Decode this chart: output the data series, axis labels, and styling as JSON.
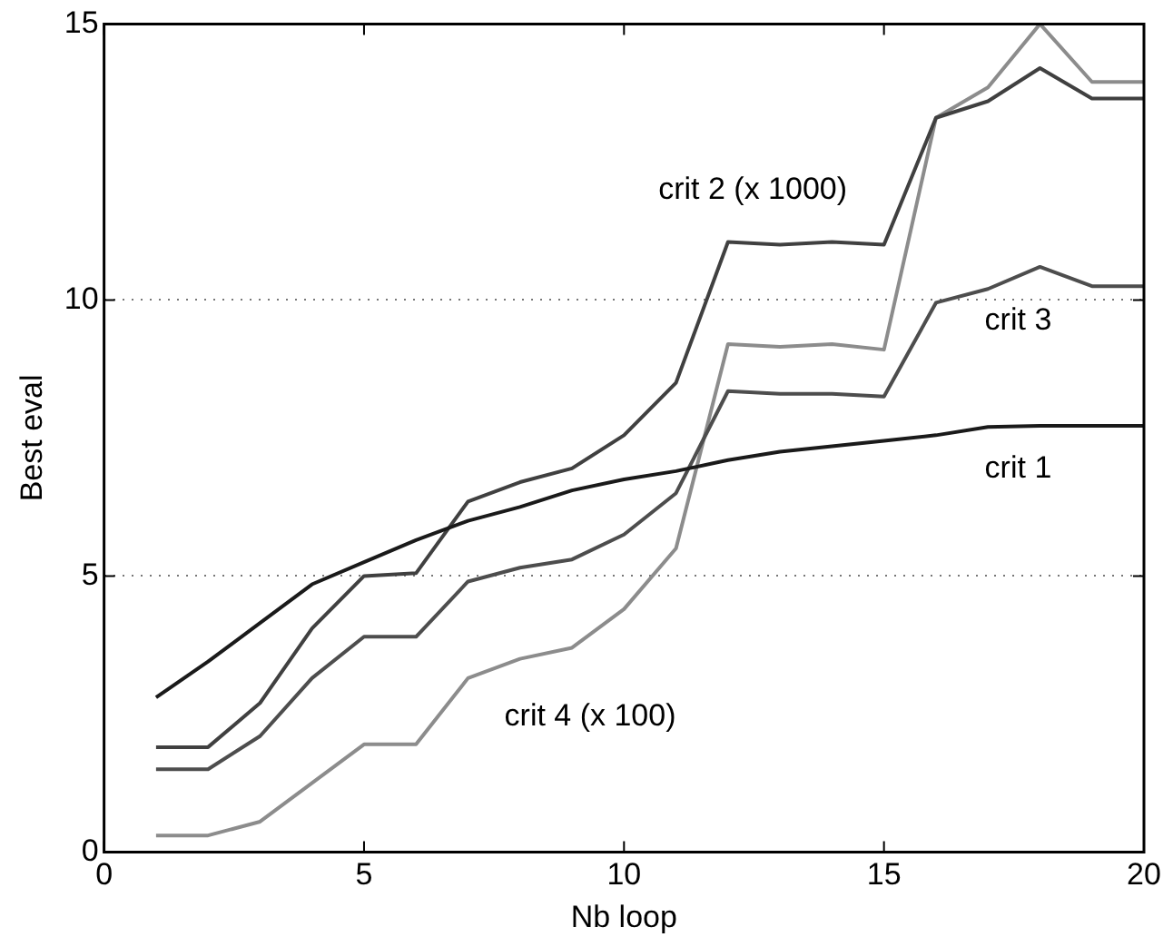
{
  "chart_data": {
    "type": "line",
    "xlabel": "Nb loop",
    "ylabel": "Best eval",
    "x": [
      1,
      2,
      3,
      4,
      5,
      6,
      7,
      8,
      9,
      10,
      11,
      12,
      13,
      14,
      15,
      16,
      17,
      18,
      19,
      20
    ],
    "series": [
      {
        "name": "crit 1",
        "color": "#1a1a1a",
        "values": [
          2.8,
          3.45,
          4.15,
          4.85,
          5.25,
          5.65,
          6.0,
          6.25,
          6.55,
          6.75,
          6.9,
          7.1,
          7.25,
          7.35,
          7.45,
          7.55,
          7.7,
          7.72,
          7.72,
          7.72
        ]
      },
      {
        "name": "crit 2 (x 1000)",
        "color": "#404040",
        "values": [
          1.9,
          1.9,
          2.7,
          4.05,
          5.0,
          5.05,
          6.35,
          6.7,
          6.95,
          7.55,
          8.5,
          11.05,
          11.0,
          11.05,
          11.0,
          13.3,
          13.6,
          14.2,
          13.65,
          13.65
        ]
      },
      {
        "name": "crit 3",
        "color": "#4d4d4d",
        "values": [
          1.5,
          1.5,
          2.1,
          3.15,
          3.9,
          3.9,
          4.9,
          5.15,
          5.3,
          5.75,
          6.5,
          8.35,
          8.3,
          8.3,
          8.25,
          9.95,
          10.2,
          10.6,
          10.25,
          10.25
        ]
      },
      {
        "name": "crit 4 (x 100)",
        "color": "#8c8c8c",
        "values": [
          0.3,
          0.3,
          0.55,
          1.25,
          1.95,
          1.95,
          3.15,
          3.5,
          3.7,
          4.4,
          5.5,
          9.2,
          9.15,
          9.2,
          9.1,
          13.3,
          13.85,
          15.0,
          13.95,
          13.95
        ]
      }
    ],
    "xlim": [
      0,
      20
    ],
    "xticks": [
      0,
      5,
      10,
      15,
      20
    ],
    "ylim": [
      0,
      15
    ],
    "yticks": [
      0,
      5,
      10,
      15
    ],
    "grid": "y",
    "line_style": "solid",
    "marker": "none",
    "legend": false
  }
}
